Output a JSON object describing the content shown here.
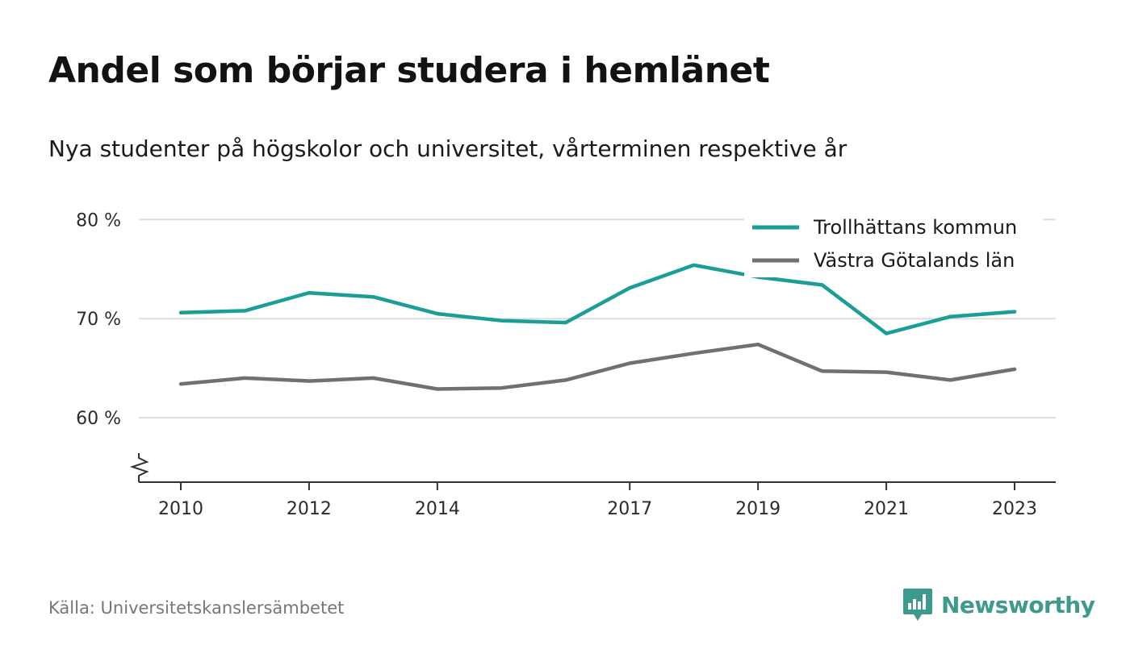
{
  "title": "Andel som börjar studera i hemlänet",
  "subtitle": "Nya studenter på högskolor och universitet, vårterminen respektive år",
  "source": "Källa: Universitetskanslersämbetet",
  "brand": {
    "name": "Newsworthy",
    "icon": "newsworthy-logo-icon",
    "color": "#3d9a8c"
  },
  "chart_data": {
    "type": "line",
    "x": [
      2010,
      2011,
      2012,
      2013,
      2014,
      2015,
      2016,
      2017,
      2018,
      2019,
      2020,
      2021,
      2022,
      2023
    ],
    "x_ticks": [
      "2010",
      "2012",
      "2014",
      "2017",
      "2019",
      "2021",
      "2023"
    ],
    "y_ticks": [
      "60 %",
      "70 %",
      "80 %"
    ],
    "ylim": [
      53.5,
      81
    ],
    "axis_break": true,
    "grid": true,
    "legend_position": "top-right",
    "series": [
      {
        "name": "Trollhättans kommun",
        "color": "#1a9e96",
        "values": [
          70.6,
          70.8,
          72.6,
          72.2,
          70.5,
          69.8,
          69.6,
          73.1,
          75.4,
          74.2,
          73.4,
          68.5,
          70.2,
          70.7
        ]
      },
      {
        "name": "Västra Götalands län",
        "color": "#6f6f76",
        "values": [
          63.4,
          64.0,
          63.7,
          64.0,
          62.9,
          63.0,
          63.8,
          65.5,
          66.5,
          67.4,
          64.7,
          64.6,
          63.8,
          64.9
        ]
      }
    ]
  }
}
